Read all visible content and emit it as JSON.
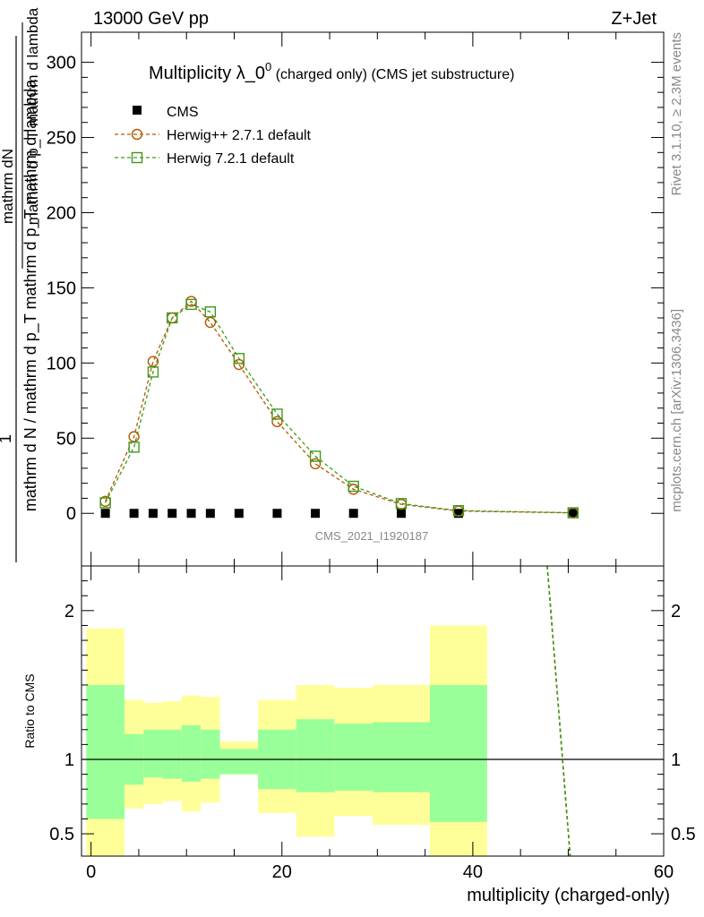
{
  "header": {
    "left_label": "13000 GeV pp",
    "right_label": "Z+Jet"
  },
  "side_text": {
    "top": "Rivet 3.1.10, ≥ 2.3M events",
    "bottom": "mcplots.cern.ch [arXiv:1306.3436]"
  },
  "watermark": "CMS_2021_I1920187",
  "colors": {
    "cms": "#000000",
    "herwigpp": "#b35900",
    "herwig7": "#3d9a1c",
    "band_inner": "#99ff99",
    "band_outer": "#ffff99"
  },
  "chart_data": [
    {
      "type": "scatter",
      "title_main": "Multiplicity λ_0",
      "title_sup": "0",
      "title_sub": " (charged only) (CMS jet substructure)",
      "ylabel_num": "1",
      "ylabel_den": "mathrm d N / mathrm d p_T mathrm d p_T mathrm d lambda",
      "ylabel_frac_num": "mathrm dN",
      "ylabel_frac_den": "mathrm d p_T mathrm d lambda",
      "xlim": [
        -1,
        60
      ],
      "ylim": [
        -35,
        320
      ],
      "y_ticks": [
        0,
        50,
        100,
        150,
        200,
        250,
        300
      ],
      "legend": [
        {
          "name": "CMS",
          "marker": "filled-square"
        },
        {
          "name": "Herwig++ 2.7.1 default",
          "marker": "open-circle"
        },
        {
          "name": "Herwig 7.2.1 default",
          "marker": "open-square"
        }
      ],
      "series": [
        {
          "name": "CMS",
          "x": [
            1.5,
            4.5,
            6.5,
            8.5,
            10.5,
            12.5,
            15.5,
            19.5,
            23.5,
            27.5,
            32.5,
            38.5,
            50.5
          ],
          "y": [
            0,
            0,
            0,
            0,
            0,
            0,
            0,
            0,
            0,
            0,
            0,
            0,
            0
          ]
        },
        {
          "name": "Herwig++ 2.7.1 default",
          "x": [
            1.5,
            4.5,
            6.5,
            8.5,
            10.5,
            12.5,
            15.5,
            19.5,
            23.5,
            27.5,
            32.5,
            38.5,
            50.5
          ],
          "y": [
            8,
            51,
            101,
            130,
            141,
            127,
            99,
            61,
            33,
            16,
            6,
            1.5,
            0.3
          ]
        },
        {
          "name": "Herwig 7.2.1 default",
          "x": [
            1.5,
            4.5,
            6.5,
            8.5,
            10.5,
            12.5,
            15.5,
            19.5,
            23.5,
            27.5,
            32.5,
            38.5,
            50.5
          ],
          "y": [
            7,
            44,
            94,
            130,
            139,
            134,
            103,
            66,
            38,
            18,
            6.5,
            1.8,
            0.4
          ]
        }
      ]
    },
    {
      "type": "line",
      "ylabel": "Ratio to CMS",
      "xlabel": "multiplicity (charged-only)",
      "xlim": [
        -1,
        60
      ],
      "ylim": [
        0.35,
        2.3
      ],
      "x_ticks": [
        0,
        20,
        40,
        60
      ],
      "y_ticks": [
        0.5,
        1,
        2
      ],
      "bands": [
        {
          "x0": -0.5,
          "x1": 3.5,
          "in_lo": 0.6,
          "in_hi": 1.5,
          "out_lo": 0.35,
          "out_hi": 1.88
        },
        {
          "x0": 3.5,
          "x1": 5.5,
          "in_lo": 0.83,
          "in_hi": 1.17,
          "out_lo": 0.67,
          "out_hi": 1.4
        },
        {
          "x0": 5.5,
          "x1": 7.5,
          "in_lo": 0.88,
          "in_hi": 1.2,
          "out_lo": 0.7,
          "out_hi": 1.38
        },
        {
          "x0": 7.5,
          "x1": 9.5,
          "in_lo": 0.87,
          "in_hi": 1.2,
          "out_lo": 0.72,
          "out_hi": 1.39
        },
        {
          "x0": 9.5,
          "x1": 11.5,
          "in_lo": 0.85,
          "in_hi": 1.23,
          "out_lo": 0.65,
          "out_hi": 1.43
        },
        {
          "x0": 11.5,
          "x1": 13.5,
          "in_lo": 0.87,
          "in_hi": 1.2,
          "out_lo": 0.71,
          "out_hi": 1.42
        },
        {
          "x0": 13.5,
          "x1": 17.5,
          "in_lo": 0.9,
          "in_hi": 1.07,
          "out_lo": 0.9,
          "out_hi": 1.12
        },
        {
          "x0": 17.5,
          "x1": 21.5,
          "in_lo": 0.8,
          "in_hi": 1.2,
          "out_lo": 0.64,
          "out_hi": 1.4
        },
        {
          "x0": 21.5,
          "x1": 25.5,
          "in_lo": 0.78,
          "in_hi": 1.27,
          "out_lo": 0.48,
          "out_hi": 1.5
        },
        {
          "x0": 25.5,
          "x1": 29.5,
          "in_lo": 0.79,
          "in_hi": 1.24,
          "out_lo": 0.62,
          "out_hi": 1.48
        },
        {
          "x0": 29.5,
          "x1": 35.5,
          "in_lo": 0.78,
          "in_hi": 1.25,
          "out_lo": 0.56,
          "out_hi": 1.5
        },
        {
          "x0": 35.5,
          "x1": 41.5,
          "in_lo": 0.58,
          "in_hi": 1.5,
          "out_lo": 0.35,
          "out_hi": 1.9
        }
      ],
      "ratio_series": [
        {
          "name": "Herwig++ 2.7.1 default",
          "x": [
            47.8,
            50.2
          ],
          "y": [
            2.3,
            0.35
          ]
        },
        {
          "name": "Herwig 7.2.1 default",
          "x": [
            47.8,
            50.2
          ],
          "y": [
            2.3,
            0.35
          ]
        }
      ]
    }
  ]
}
